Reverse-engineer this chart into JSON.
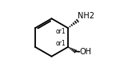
{
  "bg_color": "#ffffff",
  "line_color": "#000000",
  "line_width": 1.3,
  "font_size_label": 7.0,
  "font_size_stereo": 5.5,
  "nh2_text": "NH2",
  "oh_text": "OH",
  "or1_text": "or1"
}
